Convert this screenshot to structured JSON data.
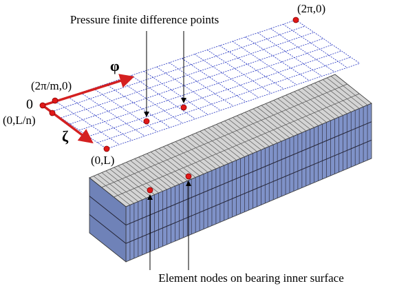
{
  "labels": {
    "pressure_points": "Pressure finite difference points",
    "corner_far": "(2π,0)",
    "corner_step_phi": "(2π/m,0)",
    "phi_axis": "φ",
    "origin": "0",
    "corner_step_zeta": "(0,L/n)",
    "zeta_axis": "ζ",
    "corner_near": "(0,L)",
    "element_nodes": "Element nodes on bearing inner surface"
  }
}
